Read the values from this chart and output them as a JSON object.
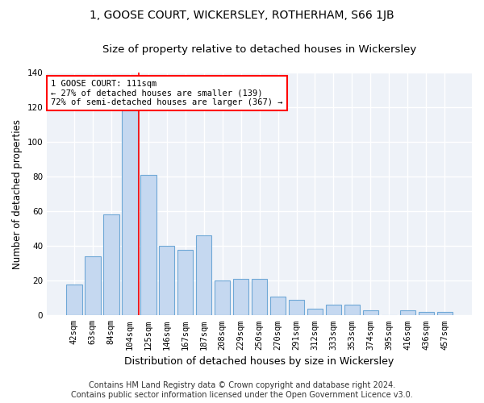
{
  "title": "1, GOOSE COURT, WICKERSLEY, ROTHERHAM, S66 1JB",
  "subtitle": "Size of property relative to detached houses in Wickersley",
  "xlabel": "Distribution of detached houses by size in Wickersley",
  "ylabel": "Number of detached properties",
  "categories": [
    "42sqm",
    "63sqm",
    "84sqm",
    "104sqm",
    "125sqm",
    "146sqm",
    "167sqm",
    "187sqm",
    "208sqm",
    "229sqm",
    "250sqm",
    "270sqm",
    "291sqm",
    "312sqm",
    "333sqm",
    "353sqm",
    "374sqm",
    "395sqm",
    "416sqm",
    "436sqm",
    "457sqm"
  ],
  "values": [
    18,
    34,
    58,
    118,
    81,
    40,
    38,
    46,
    20,
    21,
    21,
    11,
    9,
    4,
    6,
    6,
    3,
    0,
    3,
    2,
    2
  ],
  "bar_color": "#c5d8f0",
  "bar_edge_color": "#6fa8d6",
  "red_line_x": 3.5,
  "annotation_text": "1 GOOSE COURT: 111sqm\n← 27% of detached houses are smaller (139)\n72% of semi-detached houses are larger (367) →",
  "annotation_box_color": "white",
  "annotation_box_edge_color": "red",
  "ylim": [
    0,
    140
  ],
  "yticks": [
    0,
    20,
    40,
    60,
    80,
    100,
    120,
    140
  ],
  "footer_line1": "Contains HM Land Registry data © Crown copyright and database right 2024.",
  "footer_line2": "Contains public sector information licensed under the Open Government Licence v3.0.",
  "bg_color": "#eef2f8",
  "grid_color": "white",
  "title_fontsize": 10,
  "subtitle_fontsize": 9.5,
  "xlabel_fontsize": 9,
  "ylabel_fontsize": 8.5,
  "tick_fontsize": 7.5,
  "annotation_fontsize": 7.5,
  "footer_fontsize": 7
}
